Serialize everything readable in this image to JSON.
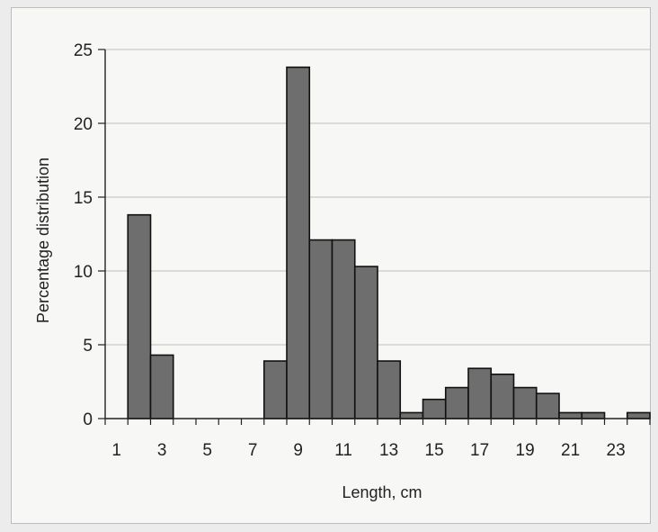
{
  "chart_data": {
    "type": "bar",
    "title": "",
    "xlabel": "Length, cm",
    "ylabel": "Percentage distribution",
    "x": [
      1,
      2,
      3,
      4,
      5,
      6,
      7,
      8,
      9,
      10,
      11,
      12,
      13,
      14,
      15,
      16,
      17,
      18,
      19,
      20,
      21,
      22,
      23,
      24
    ],
    "values": [
      0,
      13.8,
      4.3,
      0,
      0,
      0,
      0,
      3.9,
      23.8,
      12.1,
      12.1,
      10.3,
      3.9,
      0.4,
      1.3,
      2.1,
      3.4,
      3.0,
      2.1,
      1.7,
      0.4,
      0.4,
      0,
      0.4
    ],
    "xticks": [
      "1",
      "3",
      "5",
      "7",
      "9",
      "11",
      "13",
      "15",
      "17",
      "19",
      "21",
      "23"
    ],
    "yticks": [
      "0",
      "5",
      "10",
      "15",
      "20",
      "25"
    ],
    "ylim": [
      0,
      25
    ],
    "grid": "horizontal",
    "legend": "none",
    "bar_color": "#6e6e6e",
    "bar_edge_color": "#111111",
    "gridline_color": "#bfbfbf"
  }
}
